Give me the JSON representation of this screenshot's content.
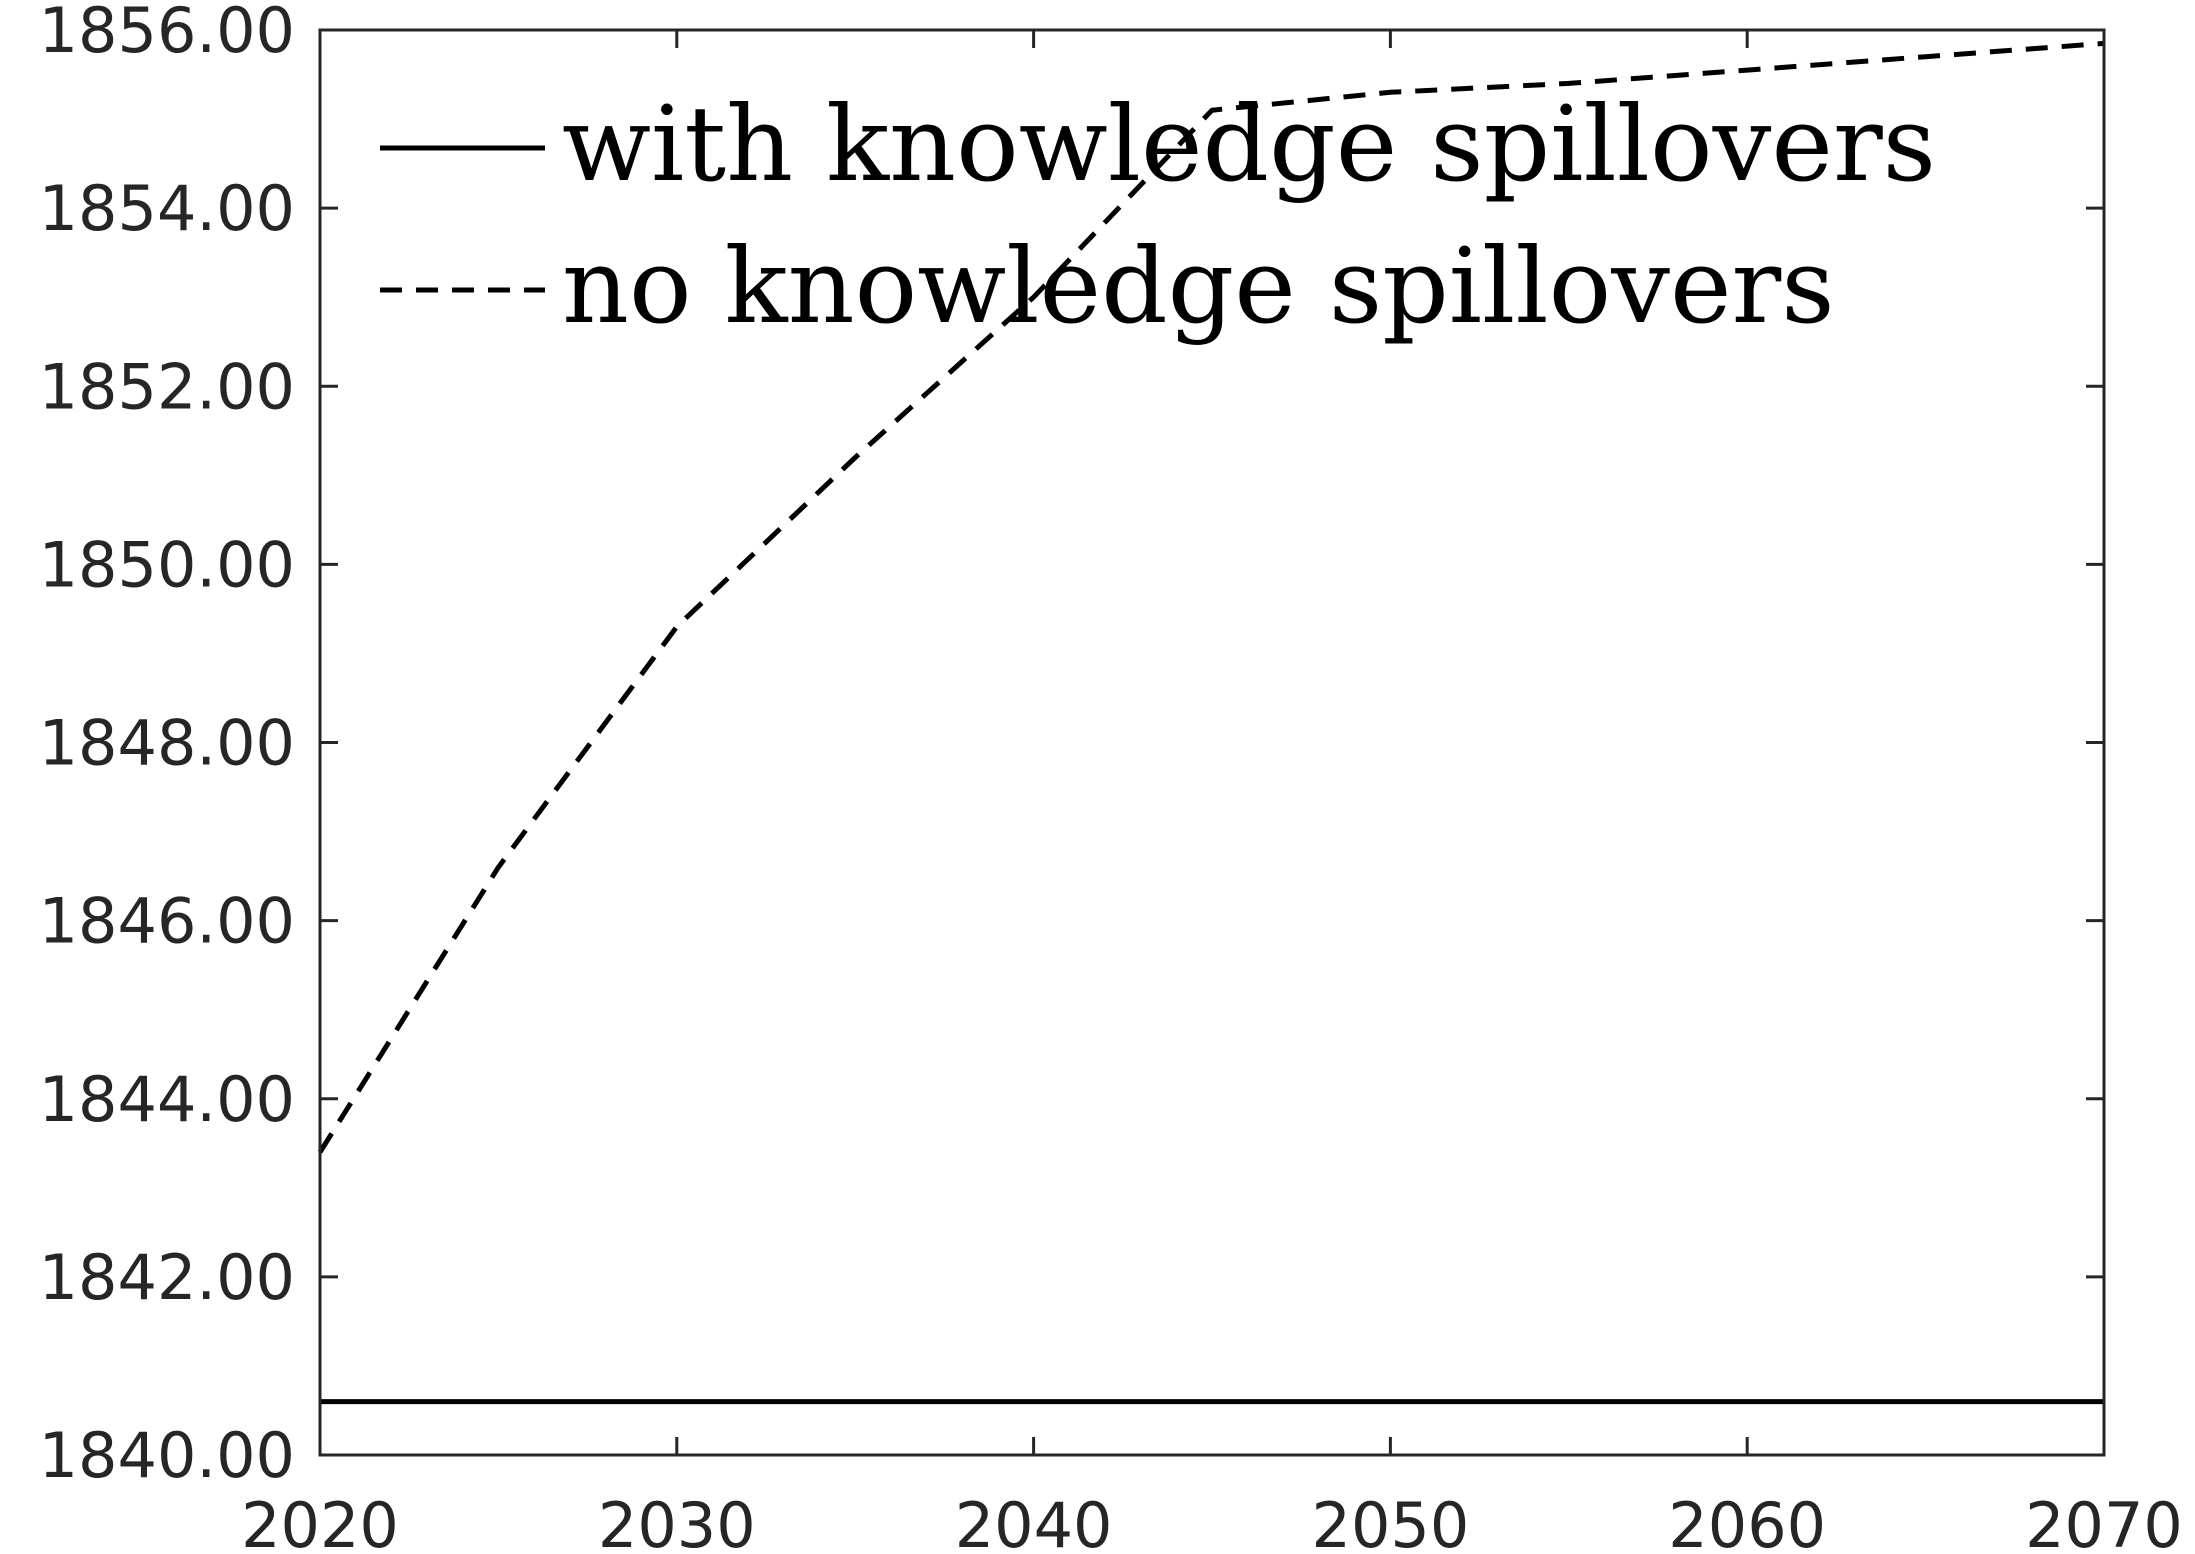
{
  "chart_data": {
    "type": "line",
    "title": "",
    "xlabel": "",
    "ylabel": "",
    "xlim": [
      2020,
      2070
    ],
    "ylim": [
      1840,
      1856
    ],
    "x_ticks": [
      "2020",
      "2030",
      "2040",
      "2050",
      "2060",
      "2070"
    ],
    "y_ticks": [
      "1840.00",
      "1842.00",
      "1844.00",
      "1846.00",
      "1848.00",
      "1850.00",
      "1852.00",
      "1854.00",
      "1856.00"
    ],
    "grid": false,
    "legend_position": "top-left",
    "series": [
      {
        "name": "with knowledge spillovers",
        "style": "solid",
        "color": "#000000",
        "x": [
          2020,
          2030,
          2040,
          2050,
          2060,
          2070
        ],
        "y": [
          1840.6,
          1840.6,
          1840.6,
          1840.6,
          1840.6,
          1840.6
        ]
      },
      {
        "name": "no knowledge spillovers",
        "style": "dashed",
        "color": "#000000",
        "x": [
          2020,
          2025,
          2030,
          2035,
          2040,
          2045,
          2050,
          2055,
          2060,
          2065,
          2070
        ],
        "y": [
          1843.4,
          1846.6,
          1849.3,
          1851.2,
          1853.0,
          1855.1,
          1855.3,
          1855.4,
          1855.55,
          1855.7,
          1855.85
        ]
      }
    ]
  }
}
